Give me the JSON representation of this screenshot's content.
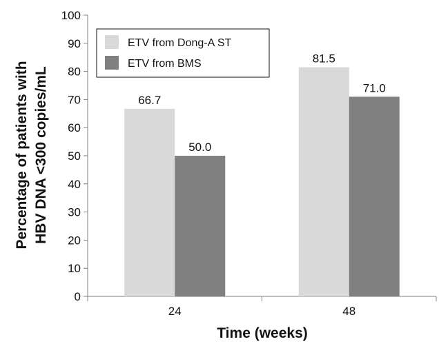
{
  "chart_data": {
    "type": "bar",
    "title": "",
    "xlabel": "Time (weeks)",
    "ylabel_lines": [
      "Percentage of patients with",
      "HBV DNA <300 copies/mL"
    ],
    "categories": [
      "24",
      "48"
    ],
    "series": [
      {
        "name": "ETV from Dong-A ST",
        "values": [
          66.7,
          81.5
        ],
        "labels": [
          "66.7",
          "81.5"
        ],
        "color": "#d9d9d9"
      },
      {
        "name": "ETV from BMS",
        "values": [
          50.0,
          71.0
        ],
        "labels": [
          "50.0",
          "71.0"
        ],
        "color": "#808080"
      }
    ],
    "ylim": [
      0,
      100
    ],
    "yticks": [
      "0",
      "10",
      "20",
      "30",
      "40",
      "50",
      "60",
      "70",
      "80",
      "90",
      "100"
    ],
    "legend_position": "top-left",
    "grid": false
  }
}
